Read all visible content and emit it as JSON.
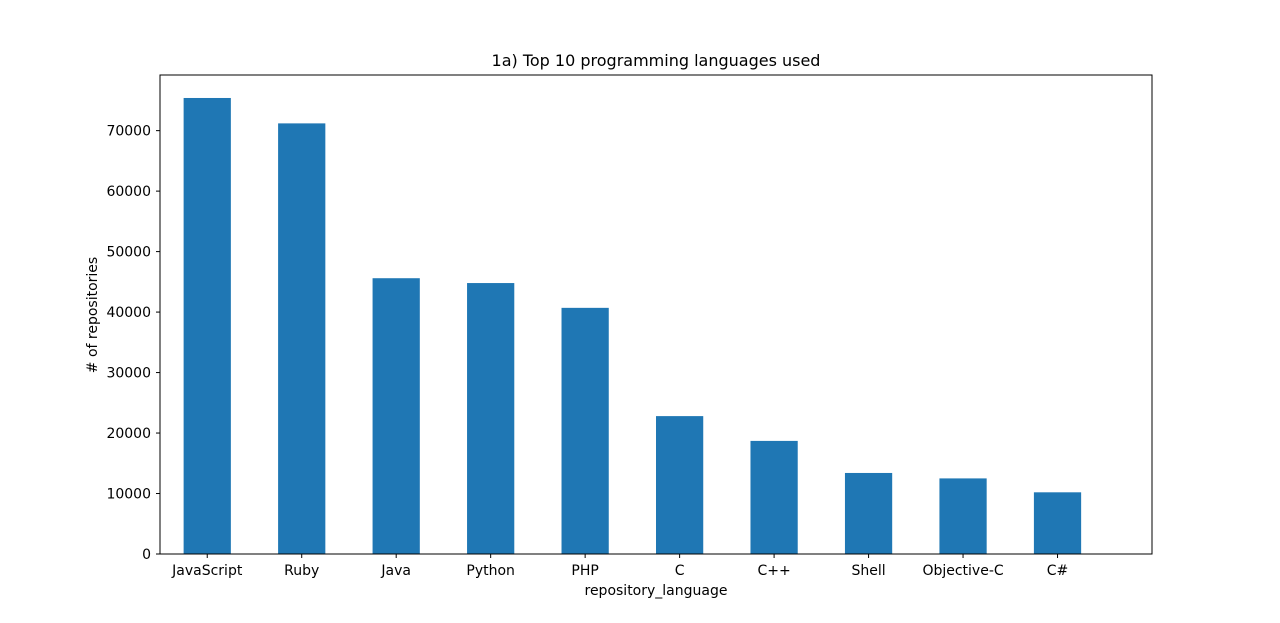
{
  "chart_data": {
    "type": "bar",
    "title": "1a) Top 10 programming languages used",
    "xlabel": "repository_language",
    "ylabel": "# of repositories",
    "categories": [
      "JavaScript",
      "Ruby",
      "Java",
      "Python",
      "PHP",
      "C",
      "C++",
      "Shell",
      "Objective-C",
      "C#"
    ],
    "values": [
      75400,
      71200,
      45600,
      44800,
      40700,
      22800,
      18700,
      13400,
      12500,
      10200
    ],
    "ylim": [
      0,
      79200
    ],
    "yticks": [
      0,
      10000,
      20000,
      30000,
      40000,
      50000,
      60000,
      70000
    ],
    "grid": false,
    "legend": "none",
    "bar_color": "#1f77b4"
  }
}
